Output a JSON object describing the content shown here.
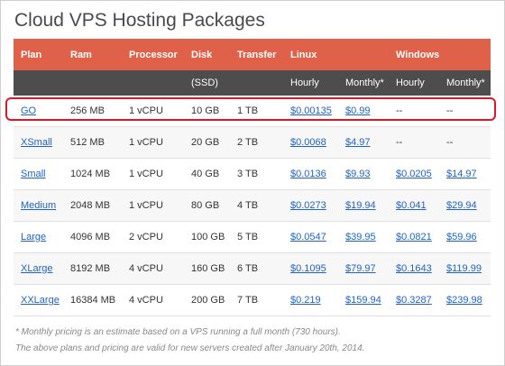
{
  "title": "Cloud VPS Hosting Packages",
  "header": {
    "plan": "Plan",
    "ram": "Ram",
    "processor": "Processor",
    "disk": "Disk",
    "disk_sub": "(SSD)",
    "transfer": "Transfer",
    "linux": "Linux",
    "windows": "Windows",
    "hourly": "Hourly",
    "monthly": "Monthly*"
  },
  "rows": [
    {
      "plan": "GO",
      "ram": "256 MB",
      "cpu": "1 vCPU",
      "disk": "10 GB",
      "transfer": "1 TB",
      "lh": "$0.00135",
      "lm": "$0.99",
      "wh": "--",
      "wm": "--"
    },
    {
      "plan": "XSmall",
      "ram": "512 MB",
      "cpu": "1 vCPU",
      "disk": "20 GB",
      "transfer": "2 TB",
      "lh": "$0.0068",
      "lm": "$4.97",
      "wh": "--",
      "wm": "--"
    },
    {
      "plan": "Small",
      "ram": "1024 MB",
      "cpu": "1 vCPU",
      "disk": "40 GB",
      "transfer": "3 TB",
      "lh": "$0.0136",
      "lm": "$9.93",
      "wh": "$0.0205",
      "wm": "$14.97"
    },
    {
      "plan": "Medium",
      "ram": "2048 MB",
      "cpu": "1 vCPU",
      "disk": "80 GB",
      "transfer": "4 TB",
      "lh": "$0.0273",
      "lm": "$19.94",
      "wh": "$0.041",
      "wm": "$29.94"
    },
    {
      "plan": "Large",
      "ram": "4096 MB",
      "cpu": "2 vCPU",
      "disk": "100 GB",
      "transfer": "5 TB",
      "lh": "$0.0547",
      "lm": "$39.95",
      "wh": "$0.0821",
      "wm": "$59.96"
    },
    {
      "plan": "XLarge",
      "ram": "8192 MB",
      "cpu": "4 vCPU",
      "disk": "160 GB",
      "transfer": "6 TB",
      "lh": "$0.1095",
      "lm": "$79.97",
      "wh": "$0.1643",
      "wm": "$119.99"
    },
    {
      "plan": "XXLarge",
      "ram": "16384 MB",
      "cpu": "4 vCPU",
      "disk": "200 GB",
      "transfer": "7 TB",
      "lh": "$0.219",
      "lm": "$159.94",
      "wh": "$0.3287",
      "wm": "$239.98"
    }
  ],
  "footnotes": [
    "* Monthly pricing is an estimate based on a VPS running a full month (730 hours).",
    "The above plans and pricing are valid for new servers created after January 20th, 2014."
  ],
  "colors": {
    "header_accent": "#e0614a",
    "subheader": "#4d4d4d",
    "link": "#2163c4",
    "highlight": "#d9182c"
  }
}
